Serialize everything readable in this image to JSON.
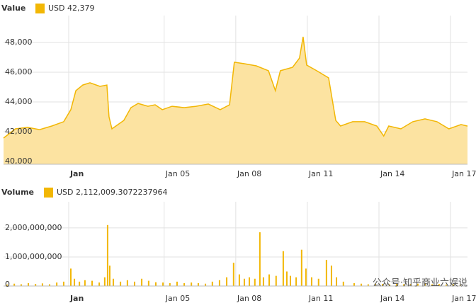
{
  "chart_data": [
    {
      "type": "area",
      "legend_title": "Value",
      "series": [
        {
          "name": "USD 42,379",
          "color": "#f2b705",
          "fill": "#fce3a1",
          "x": [
            -1.73,
            -1.23,
            -0.72,
            -0.22,
            0.29,
            0.79,
            1.09,
            1.3,
            1.59,
            1.89,
            2.31,
            2.6,
            2.69,
            2.81,
            3.31,
            3.61,
            3.91,
            4.32,
            4.62,
            4.92,
            5.33,
            5.84,
            6.34,
            6.85,
            7.35,
            7.74,
            7.94,
            8.36,
            8.86,
            9.37,
            9.66,
            9.87,
            10.38,
            10.67,
            10.82,
            10.97,
            11.39,
            11.89,
            12.19,
            12.39,
            12.9,
            13.4,
            13.91,
            14.2,
            14.41,
            14.92,
            15.42,
            15.93,
            16.43,
            16.93,
            17.44,
            17.71
          ],
          "values": [
            41570,
            42190,
            42290,
            42140,
            42380,
            42670,
            43480,
            44760,
            45140,
            45290,
            45050,
            45140,
            43000,
            42190,
            42760,
            43620,
            43900,
            43710,
            43810,
            43480,
            43710,
            43620,
            43710,
            43860,
            43480,
            43810,
            46670,
            46570,
            46430,
            46100,
            44760,
            46100,
            46330,
            46950,
            48380,
            46480,
            46100,
            45620,
            42760,
            42380,
            42670,
            42670,
            42380,
            41710,
            42380,
            42190,
            42670,
            42860,
            42670,
            42190,
            42480,
            42379
          ]
        }
      ],
      "xlim": [
        -1.73,
        17.71
      ],
      "xticks": [
        {
          "value": 1,
          "label": "Jan"
        },
        {
          "value": 5,
          "label": "Jan 05"
        },
        {
          "value": 8,
          "label": "Jan 08"
        },
        {
          "value": 11,
          "label": "Jan 11"
        },
        {
          "value": 14,
          "label": "Jan 14"
        },
        {
          "value": 17,
          "label": "Jan 17"
        }
      ],
      "ylim": [
        39810,
        49810
      ],
      "yticks": [
        {
          "value": 40000,
          "label": "40,000"
        },
        {
          "value": 42000,
          "label": "42,000"
        },
        {
          "value": 44000,
          "label": "44,000"
        },
        {
          "value": 46000,
          "label": "46,000"
        },
        {
          "value": 48000,
          "label": "48,000"
        }
      ],
      "grid": true
    },
    {
      "type": "bar",
      "legend_title": "Volume",
      "series": [
        {
          "name": "USD 2,112,009.3072237964",
          "color": "#f2b705",
          "x": [
            -1.58,
            -1.28,
            -0.99,
            -0.69,
            -0.39,
            -0.1,
            0.2,
            0.5,
            0.79,
            1.09,
            1.24,
            1.45,
            1.68,
            1.98,
            2.28,
            2.51,
            2.63,
            2.72,
            2.87,
            3.17,
            3.46,
            3.76,
            4.06,
            4.35,
            4.65,
            4.95,
            5.24,
            5.54,
            5.84,
            6.14,
            6.43,
            6.73,
            7.02,
            7.32,
            7.62,
            7.91,
            8.15,
            8.36,
            8.57,
            8.8,
            9.01,
            9.16,
            9.4,
            9.69,
            9.99,
            10.14,
            10.29,
            10.53,
            10.76,
            10.94,
            11.18,
            11.47,
            11.8,
            12.01,
            12.22,
            12.51,
            12.96,
            13.26,
            13.55,
            13.85,
            14.15,
            14.44,
            14.74,
            15.04,
            15.33,
            15.63,
            15.93,
            16.23,
            16.52,
            16.82,
            17.11,
            17.41
          ],
          "values": [
            50000000,
            80000000,
            60000000,
            100000000,
            70000000,
            90000000,
            60000000,
            120000000,
            150000000,
            600000000,
            250000000,
            150000000,
            200000000,
            180000000,
            120000000,
            300000000,
            2100000000,
            700000000,
            250000000,
            150000000,
            200000000,
            150000000,
            250000000,
            180000000,
            130000000,
            120000000,
            100000000,
            150000000,
            100000000,
            120000000,
            100000000,
            80000000,
            150000000,
            200000000,
            300000000,
            800000000,
            400000000,
            250000000,
            300000000,
            250000000,
            1850000000,
            300000000,
            400000000,
            350000000,
            1200000000,
            500000000,
            350000000,
            300000000,
            1250000000,
            600000000,
            300000000,
            250000000,
            900000000,
            700000000,
            300000000,
            150000000,
            100000000,
            80000000,
            60000000,
            80000000,
            70000000,
            60000000,
            80000000,
            60000000,
            70000000,
            80000000,
            90000000,
            60000000,
            70000000,
            50000000,
            60000000,
            50000000
          ]
        }
      ],
      "xlim": [
        -1.73,
        17.71
      ],
      "xticks": [
        {
          "value": 1,
          "label": "Jan"
        },
        {
          "value": 5,
          "label": "Jan 05"
        },
        {
          "value": 8,
          "label": "Jan 08"
        },
        {
          "value": 11,
          "label": "Jan 11"
        },
        {
          "value": 14,
          "label": "Jan 14"
        },
        {
          "value": 17,
          "label": "Jan 17"
        }
      ],
      "ylim": [
        0,
        2900000000
      ],
      "yticks": [
        {
          "value": 0,
          "label": "0"
        },
        {
          "value": 1000000000,
          "label": "1,000,000,000"
        },
        {
          "value": 2000000000,
          "label": "2,000,000,000"
        }
      ],
      "grid": true,
      "watermark": "公众号·知乎商业六娱说"
    }
  ]
}
